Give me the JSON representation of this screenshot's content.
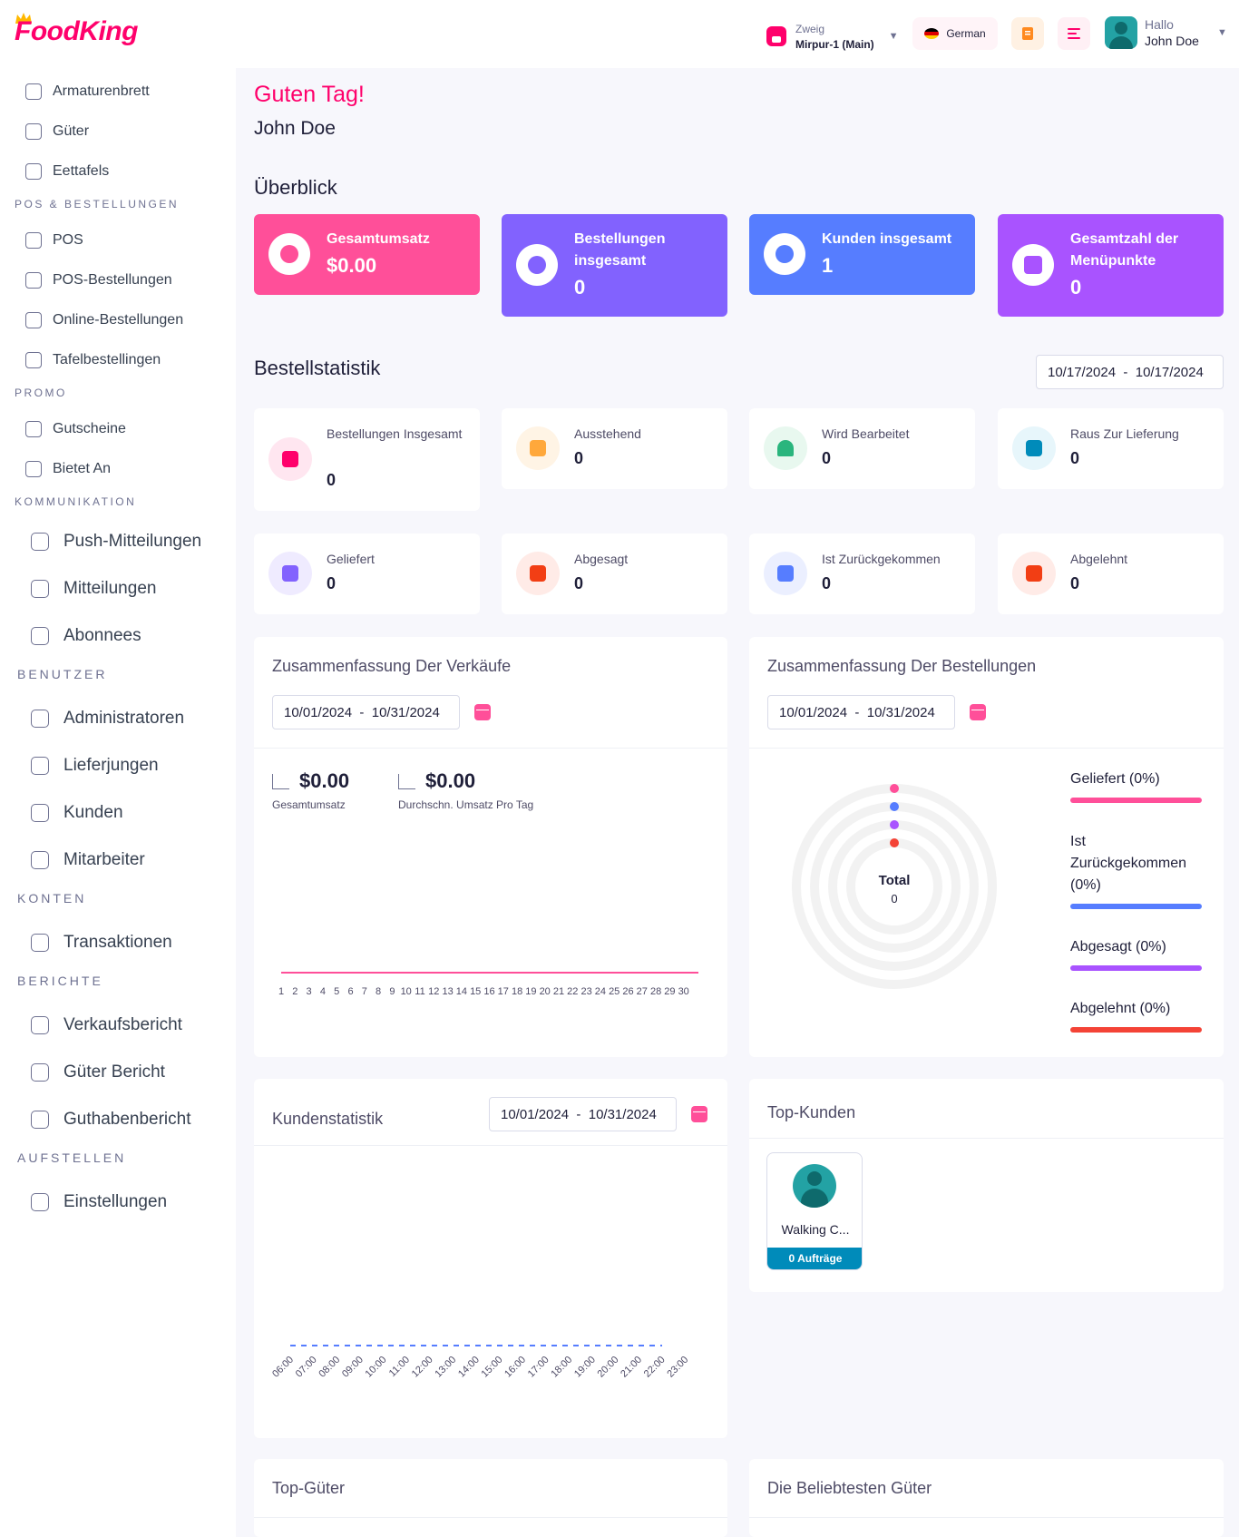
{
  "app": {
    "logo": "FoodKing"
  },
  "header": {
    "branch_label": "Zweig",
    "branch_name": "Mirpur-1 (Main)",
    "language": "German",
    "user_greeting": "Hallo",
    "user_name": "John Doe"
  },
  "sidebar": {
    "items": [
      {
        "label": "Armaturenbrett"
      },
      {
        "label": "Güter"
      },
      {
        "label": "Eettafels"
      },
      {
        "section": "POS & BESTELLUNGEN"
      },
      {
        "label": "POS"
      },
      {
        "label": "POS-Bestellungen"
      },
      {
        "label": "Online-Bestellungen"
      },
      {
        "label": "Tafelbestellingen"
      },
      {
        "section": "PROMO"
      },
      {
        "label": "Gutscheine"
      },
      {
        "label": "Bietet An"
      },
      {
        "section": "KOMMUNIKATION"
      },
      {
        "label": "Push-Mitteilungen"
      },
      {
        "label": "Mitteilungen"
      },
      {
        "label": "Abonnees"
      },
      {
        "section": "BENUTZER"
      },
      {
        "label": "Administratoren"
      },
      {
        "label": "Lieferjungen"
      },
      {
        "label": "Kunden"
      },
      {
        "label": "Mitarbeiter"
      },
      {
        "section": "KONTEN"
      },
      {
        "label": "Transaktionen"
      },
      {
        "section": "BERICHTE"
      },
      {
        "label": "Verkaufsbericht"
      },
      {
        "label": "Güter Bericht"
      },
      {
        "label": "Guthabenbericht"
      },
      {
        "section": "AUFSTELLEN"
      },
      {
        "label": "Einstellungen"
      }
    ]
  },
  "main": {
    "greeting": "Guten Tag!",
    "user_name": "John Doe",
    "overview_title": "Überblick",
    "overview": [
      {
        "label": "Gesamtumsatz",
        "value": "$0.00",
        "color": "#ff4f99"
      },
      {
        "label": "Bestellungen insgesamt",
        "value": "0",
        "color": "#8262fe"
      },
      {
        "label": "Kunden insgesamt",
        "value": "1",
        "color": "#567dff"
      },
      {
        "label": "Gesamtzahl der Menüpunkte",
        "value": "0",
        "color": "#a953ff"
      }
    ],
    "order_stats_title": "Bestellstatistik",
    "order_stats_range": "10/17/2024  -  10/17/2024",
    "order_stats": [
      {
        "label": "Bestellungen Insgesamt",
        "value": "0",
        "color": "#ff006b",
        "bg": "#ffe6f0"
      },
      {
        "label": "Ausstehend",
        "value": "0",
        "color": "#ffa83b",
        "bg": "#fff4e5"
      },
      {
        "label": "Wird Bearbeitet",
        "value": "0",
        "color": "#2ab57d",
        "bg": "#e8f8ef"
      },
      {
        "label": "Raus Zur Lieferung",
        "value": "0",
        "color": "#008bba",
        "bg": "#e7f6fb"
      },
      {
        "label": "Geliefert",
        "value": "0",
        "color": "#8262fe",
        "bg": "#efebff"
      },
      {
        "label": "Abgesagt",
        "value": "0",
        "color": "#f23e14",
        "bg": "#ffebe7"
      },
      {
        "label": "Ist Zurückgekommen",
        "value": "0",
        "color": "#567dff",
        "bg": "#ebefff"
      },
      {
        "label": "Abgelehnt",
        "value": "0",
        "color": "#f23e14",
        "bg": "#ffebe7"
      }
    ],
    "sales_summary": {
      "title": "Zusammenfassung Der Verkäufe",
      "range": "10/01/2024  -  10/31/2024",
      "total_value": "$0.00",
      "total_label": "Gesamtumsatz",
      "avg_value": "$0.00",
      "avg_label": "Durchschn. Umsatz Pro Tag"
    },
    "order_summary": {
      "title": "Zusammenfassung Der Bestellungen",
      "range": "10/01/2024  -  10/31/2024",
      "center_label": "Total",
      "center_value": "0",
      "legend": [
        {
          "label": "Geliefert (0%)",
          "color": "#ff4f99"
        },
        {
          "label": "Ist Zurückgekommen (0%)",
          "color": "#567dff"
        },
        {
          "label": "Abgesagt (0%)",
          "color": "#a953ff"
        },
        {
          "label": "Abgelehnt (0%)",
          "color": "#f44336"
        }
      ]
    },
    "customer_stats": {
      "title": "Kundenstatistik",
      "range": "10/01/2024  -  10/31/2024"
    },
    "top_customers": {
      "title": "Top-Kunden",
      "customers": [
        {
          "name": "Walking C...",
          "orders": "0 Aufträge"
        }
      ]
    },
    "top_items_title": "Top-Güter",
    "popular_items_title": "Die Beliebtesten Güter"
  },
  "chart_data": [
    {
      "type": "line",
      "title": "Zusammenfassung Der Verkäufe",
      "x": [
        1,
        2,
        3,
        4,
        5,
        6,
        7,
        8,
        9,
        10,
        11,
        12,
        13,
        14,
        15,
        16,
        17,
        18,
        19,
        20,
        21,
        22,
        23,
        24,
        25,
        26,
        27,
        28,
        29,
        30
      ],
      "series": [
        {
          "values": [
            0,
            0,
            0,
            0,
            0,
            0,
            0,
            0,
            0,
            0,
            0,
            0,
            0,
            0,
            0,
            0,
            0,
            0,
            0,
            0,
            0,
            0,
            0,
            0,
            0,
            0,
            0,
            0,
            0,
            0
          ],
          "color": "#ff4f99"
        }
      ]
    },
    {
      "type": "pie",
      "title": "Zusammenfassung Der Bestellungen",
      "categories": [
        "Geliefert",
        "Ist Zurückgekommen",
        "Abgesagt",
        "Abgelehnt"
      ],
      "values": [
        0,
        0,
        0,
        0
      ],
      "colors": [
        "#ff4f99",
        "#567dff",
        "#a953ff",
        "#f44336"
      ]
    },
    {
      "type": "line",
      "title": "Kundenstatistik",
      "x": [
        "06:00",
        "07:00",
        "08:00",
        "09:00",
        "10:00",
        "11:00",
        "12:00",
        "13:00",
        "14:00",
        "15:00",
        "16:00",
        "17:00",
        "18:00",
        "19:00",
        "20:00",
        "21:00",
        "22:00",
        "23:00"
      ],
      "series": [
        {
          "values": [
            0,
            0,
            0,
            0,
            0,
            0,
            0,
            0,
            0,
            0,
            0,
            0,
            0,
            0,
            0,
            0,
            0,
            0
          ],
          "color": "#567dff"
        }
      ]
    }
  ]
}
